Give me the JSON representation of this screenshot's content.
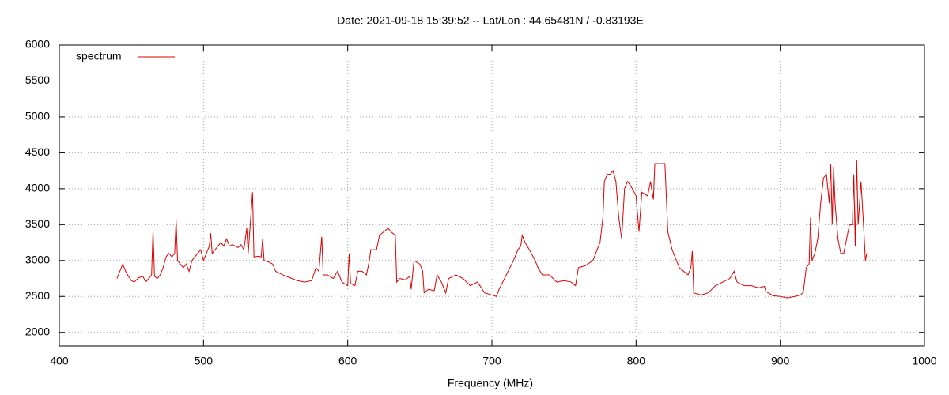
{
  "chart_data": {
    "type": "line",
    "title": "Date: 2021-09-18 15:39:52  --  Lat/Lon : 44.65481N / -0.83193E",
    "xlabel": "Frequency (MHz)",
    "xlim": [
      400,
      1000
    ],
    "xticks": [
      400,
      500,
      600,
      700,
      800,
      900,
      1000
    ],
    "ylim": [
      1810,
      6000
    ],
    "yticks": [
      2000,
      2500,
      3000,
      3500,
      4000,
      4500,
      5000,
      5500,
      6000
    ],
    "grid": true,
    "legend": "upper left",
    "x": [
      440,
      442,
      444,
      446,
      448,
      450,
      452,
      455,
      458,
      460,
      462,
      464,
      465,
      466,
      468,
      470,
      472,
      474,
      476,
      478,
      480,
      481,
      482,
      484,
      486,
      488,
      490,
      492,
      494,
      496,
      498,
      500,
      502,
      504,
      505,
      506,
      508,
      510,
      512,
      514,
      516,
      518,
      520,
      522,
      524,
      526,
      528,
      530,
      531,
      534,
      535,
      538,
      540,
      541,
      542,
      545,
      548,
      550,
      555,
      560,
      565,
      570,
      575,
      578,
      580,
      582,
      583,
      586,
      590,
      593,
      596,
      600,
      601,
      602,
      605,
      607,
      610,
      613,
      615,
      616,
      620,
      622,
      625,
      628,
      630,
      633,
      634,
      636,
      640,
      643,
      644,
      646,
      650,
      652,
      653,
      656,
      660,
      662,
      665,
      668,
      670,
      675,
      680,
      685,
      690,
      695,
      700,
      703,
      705,
      710,
      715,
      718,
      720,
      721,
      723,
      726,
      730,
      732,
      735,
      740,
      745,
      750,
      755,
      758,
      760,
      765,
      770,
      772,
      775,
      777,
      778,
      780,
      782,
      784,
      786,
      788,
      790,
      792,
      794,
      796,
      800,
      802,
      804,
      808,
      810,
      812,
      813,
      816,
      820,
      822,
      825,
      828,
      830,
      833,
      836,
      838,
      839,
      840,
      845,
      850,
      855,
      860,
      865,
      868,
      870,
      875,
      880,
      885,
      889,
      890,
      895,
      900,
      905,
      910,
      914,
      916,
      918,
      920,
      921,
      922,
      924,
      926,
      928,
      930,
      932,
      934,
      935,
      936,
      937,
      938,
      940,
      942,
      944,
      946,
      948,
      950,
      951,
      952,
      953,
      954,
      956,
      958,
      959,
      960
    ],
    "series": [
      {
        "name": "spectrum",
        "color": "#dd0000",
        "values": [
          2750,
          2850,
          2950,
          2850,
          2780,
          2720,
          2700,
          2760,
          2780,
          2700,
          2750,
          2800,
          3420,
          2780,
          2750,
          2800,
          2900,
          3050,
          3100,
          3050,
          3100,
          3560,
          3000,
          2950,
          2900,
          2950,
          2850,
          3000,
          3050,
          3100,
          3150,
          3000,
          3100,
          3200,
          3380,
          3100,
          3150,
          3200,
          3250,
          3200,
          3300,
          3200,
          3220,
          3200,
          3180,
          3220,
          3150,
          3450,
          3100,
          3950,
          3050,
          3060,
          3050,
          3300,
          3000,
          2980,
          2950,
          2850,
          2800,
          2760,
          2720,
          2700,
          2720,
          2900,
          2850,
          3330,
          2800,
          2800,
          2750,
          2850,
          2700,
          2650,
          3100,
          2680,
          2650,
          2850,
          2850,
          2800,
          3000,
          3150,
          3150,
          3350,
          3400,
          3450,
          3400,
          3350,
          2700,
          2750,
          2730,
          2780,
          2600,
          3000,
          2950,
          2850,
          2550,
          2600,
          2580,
          2800,
          2700,
          2550,
          2750,
          2800,
          2750,
          2650,
          2700,
          2550,
          2520,
          2500,
          2600,
          2800,
          3000,
          3150,
          3200,
          3350,
          3250,
          3150,
          3000,
          2900,
          2800,
          2800,
          2700,
          2720,
          2700,
          2650,
          2900,
          2930,
          3000,
          3100,
          3250,
          3600,
          4100,
          4200,
          4200,
          4250,
          4100,
          3600,
          3300,
          4000,
          4100,
          4050,
          3900,
          3400,
          3950,
          3900,
          4100,
          3850,
          4350,
          4350,
          4350,
          3400,
          3150,
          3000,
          2900,
          2850,
          2800,
          2900,
          3130,
          2550,
          2520,
          2550,
          2650,
          2700,
          2750,
          2850,
          2700,
          2650,
          2650,
          2620,
          2640,
          2570,
          2510,
          2500,
          2480,
          2500,
          2520,
          2560,
          2900,
          2950,
          3600,
          3000,
          3100,
          3300,
          3800,
          4150,
          4200,
          3800,
          4350,
          3500,
          4300,
          3800,
          3300,
          3100,
          3100,
          3300,
          3500,
          3500,
          4200,
          3200,
          4400,
          3500,
          4100,
          3400,
          3000,
          3100
        ]
      }
    ]
  }
}
